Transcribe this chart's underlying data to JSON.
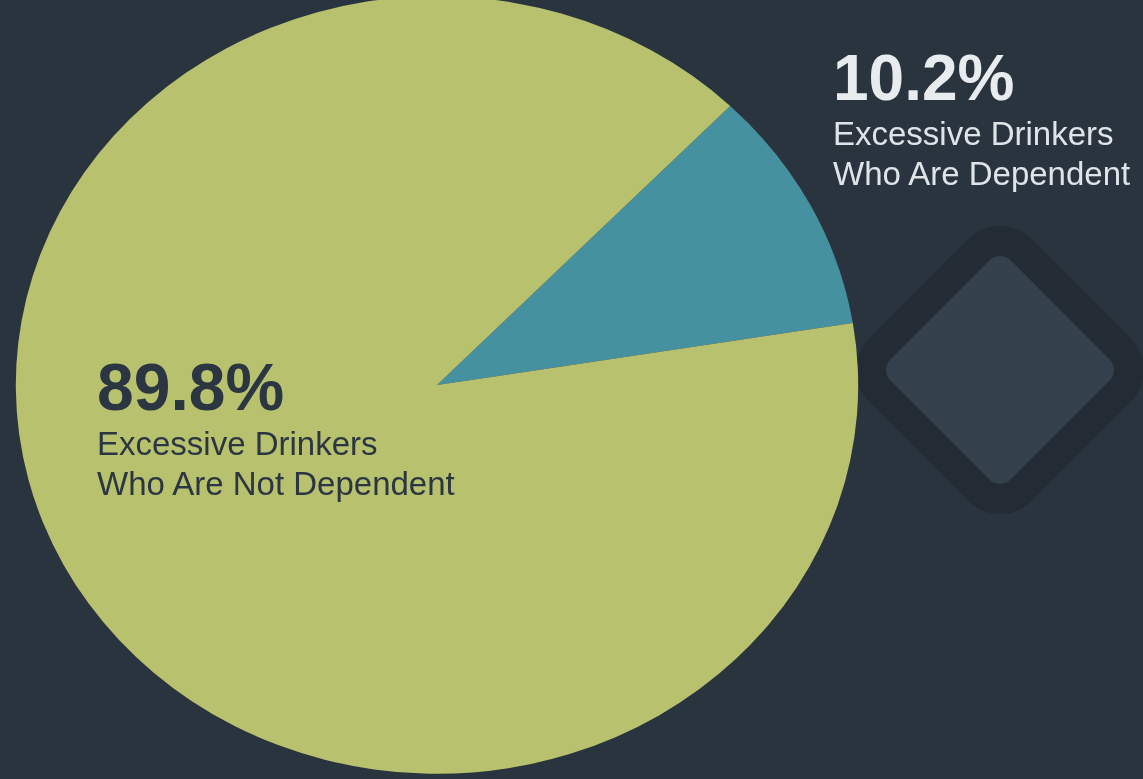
{
  "chart_data": {
    "type": "pie",
    "categories": [
      "Excessive Drinkers Who Are Dependent",
      "Excessive Drinkers Who Are Not Dependent"
    ],
    "values": [
      10.2,
      89.8
    ],
    "colors": [
      "#4591a0",
      "#b8c16e"
    ],
    "value_labels": [
      "10.2%",
      "89.8%"
    ]
  }
}
